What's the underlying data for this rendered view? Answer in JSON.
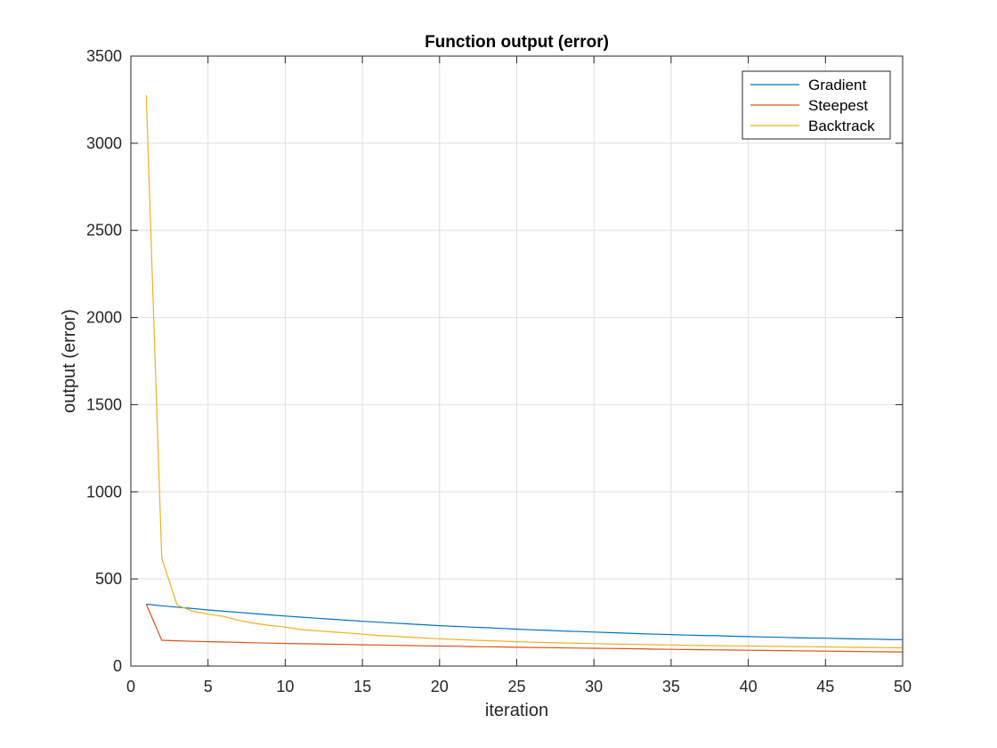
{
  "chart_data": {
    "type": "line",
    "title": "Function output (error)",
    "xlabel": "iteration",
    "ylabel": "output (error)",
    "xlim": [
      0,
      50
    ],
    "ylim": [
      0,
      3500
    ],
    "xticks": [
      0,
      5,
      10,
      15,
      20,
      25,
      30,
      35,
      40,
      45,
      50
    ],
    "yticks": [
      0,
      500,
      1000,
      1500,
      2000,
      2500,
      3000,
      3500
    ],
    "grid": true,
    "legend_position": "top-right",
    "series": [
      {
        "name": "Gradient",
        "color": "#0072BD",
        "x": [
          1,
          2,
          3,
          4,
          5,
          6,
          7,
          8,
          9,
          10,
          11,
          12,
          13,
          14,
          15,
          16,
          17,
          18,
          19,
          20,
          21,
          22,
          23,
          24,
          25,
          26,
          27,
          28,
          29,
          30,
          31,
          32,
          33,
          34,
          35,
          36,
          37,
          38,
          39,
          40,
          41,
          42,
          43,
          44,
          45,
          46,
          47,
          48,
          49,
          50
        ],
        "y": [
          355,
          346,
          338,
          330,
          322,
          315,
          308,
          301,
          294,
          287,
          281,
          275,
          269,
          263,
          257,
          252,
          247,
          242,
          237,
          232,
          228,
          224,
          220,
          216,
          212,
          208,
          205,
          201,
          198,
          195,
          192,
          189,
          186,
          183,
          181,
          178,
          176,
          174,
          171,
          169,
          167,
          165,
          163,
          161,
          160,
          158,
          156,
          155,
          153,
          152
        ]
      },
      {
        "name": "Steepest",
        "color": "#D95319",
        "x": [
          1,
          2,
          3,
          4,
          5,
          6,
          7,
          8,
          9,
          10,
          11,
          12,
          13,
          14,
          15,
          16,
          17,
          18,
          19,
          20,
          21,
          22,
          23,
          24,
          25,
          26,
          27,
          28,
          29,
          30,
          31,
          32,
          33,
          34,
          35,
          36,
          37,
          38,
          39,
          40,
          41,
          42,
          43,
          44,
          45,
          46,
          47,
          48,
          49,
          50
        ],
        "y": [
          355,
          148,
          145,
          142,
          140,
          138,
          136,
          134,
          132,
          130,
          128,
          127,
          125,
          124,
          122,
          121,
          119,
          118,
          116,
          115,
          114,
          112,
          111,
          110,
          108,
          107,
          106,
          105,
          103,
          102,
          101,
          100,
          99,
          97,
          96,
          95,
          94,
          93,
          92,
          91,
          90,
          89,
          88,
          87,
          86,
          85,
          84,
          83,
          82,
          81
        ]
      },
      {
        "name": "Backtrack",
        "color": "#EDB120",
        "x": [
          1,
          2,
          3,
          4,
          5,
          6,
          7,
          8,
          9,
          10,
          11,
          12,
          13,
          14,
          15,
          16,
          17,
          18,
          19,
          20,
          21,
          22,
          23,
          24,
          25,
          26,
          27,
          28,
          29,
          30,
          31,
          32,
          33,
          34,
          35,
          36,
          37,
          38,
          39,
          40,
          41,
          42,
          43,
          44,
          45,
          46,
          47,
          48,
          49,
          50
        ],
        "y": [
          3275,
          620,
          350,
          315,
          298,
          285,
          262,
          245,
          233,
          224,
          210,
          203,
          196,
          190,
          183,
          176,
          171,
          166,
          161,
          157,
          153,
          149,
          146,
          143,
          140,
          137,
          135,
          133,
          131,
          129,
          127,
          125,
          124,
          122,
          121,
          119,
          118,
          117,
          116,
          115,
          114,
          113,
          112,
          111,
          110,
          109,
          108,
          107,
          106,
          105
        ]
      }
    ]
  }
}
